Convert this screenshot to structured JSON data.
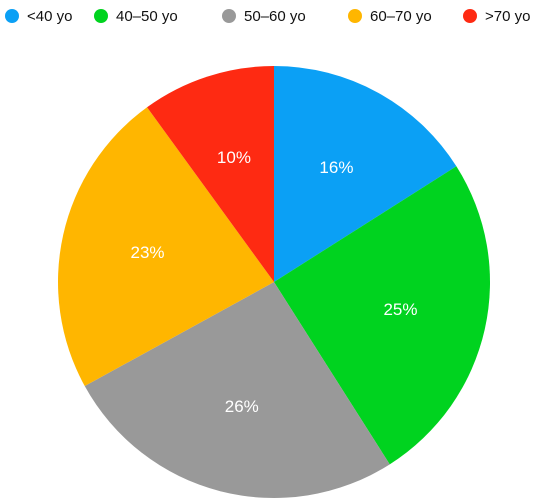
{
  "chart_data": {
    "type": "pie",
    "categories": [
      "<40 yo",
      "40–50 yo",
      "50–60 yo",
      "60–70 yo",
      ">70 yo"
    ],
    "values": [
      16,
      25,
      26,
      23,
      10
    ],
    "value_labels": [
      "16%",
      "25%",
      "26%",
      "23%",
      "10%"
    ],
    "colors": [
      "#0ba0f5",
      "#00d31f",
      "#999999",
      "#ffb600",
      "#fe2a12"
    ],
    "legend": "top"
  }
}
